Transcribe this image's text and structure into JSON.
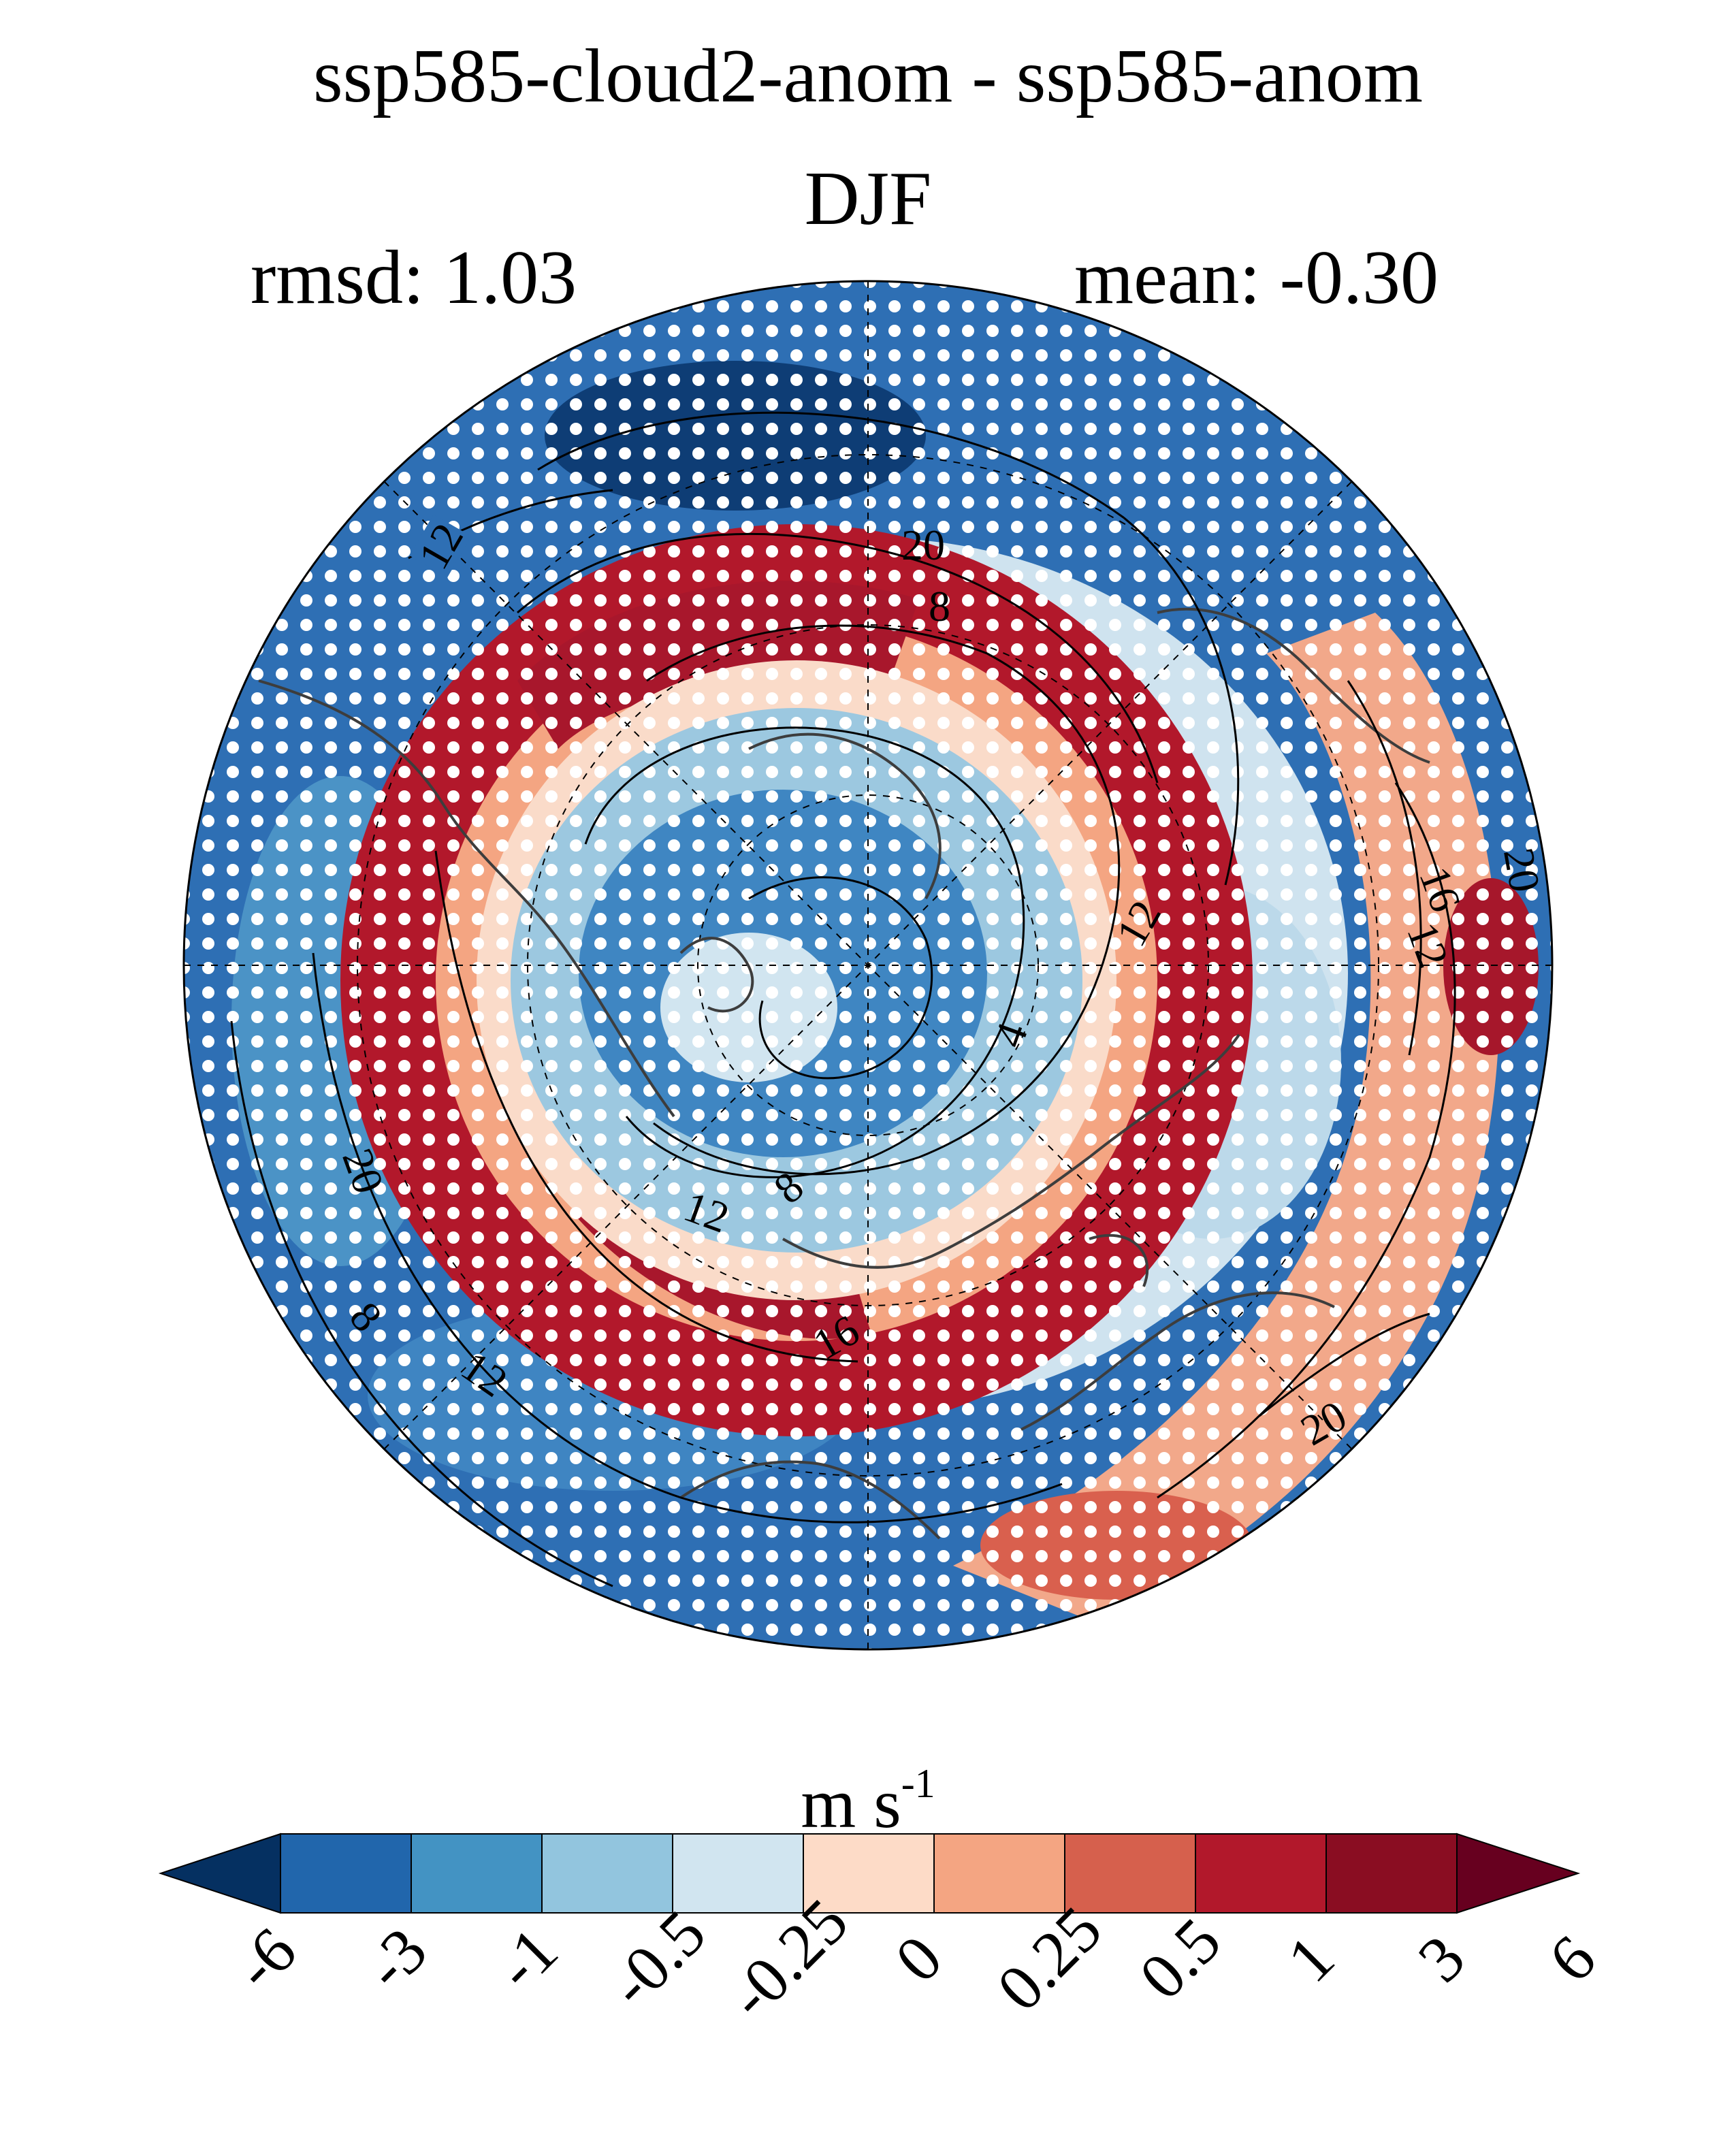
{
  "chart_data": {
    "type": "heatmap",
    "projection": "north polar stereographic",
    "title": "ssp585-cloud2-anom - ssp585-anom",
    "subtitle": "DJF",
    "stats": {
      "rmsd": "rmsd: 1.03",
      "mean": "mean: -0.30"
    },
    "colorbar": {
      "units_base": "m s",
      "units_exponent": "-1",
      "levels": [
        "-6",
        "-3",
        "-1",
        "-0.5",
        "-0.25",
        "0",
        "0.25",
        "0.5",
        "1",
        "3",
        "6"
      ],
      "colors": [
        "#053061",
        "#2166ac",
        "#4393c3",
        "#92c5de",
        "#d1e5f0",
        "#fddbc7",
        "#f4a582",
        "#d6604d",
        "#b2182b",
        "#8a0d22",
        "#67001f"
      ],
      "extend": "both"
    },
    "contour_labels": [
      "12",
      "20",
      "8",
      "12",
      "16",
      "12",
      "20",
      "4",
      "12",
      "8",
      "20",
      "8",
      "12",
      "16",
      "20"
    ],
    "stippling": "significant regions"
  }
}
